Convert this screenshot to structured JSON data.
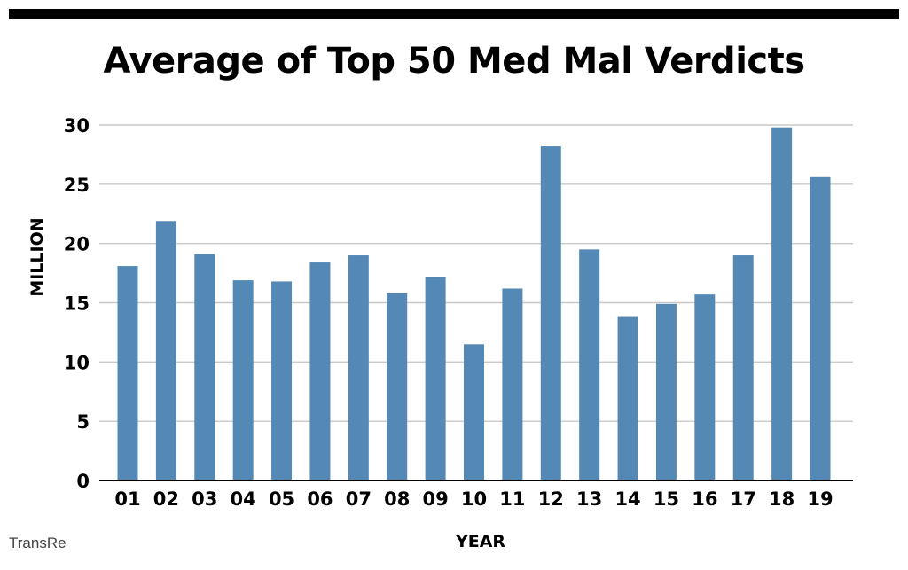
{
  "source": "TransRe",
  "colors": {
    "bar": "#5589b5",
    "grid": "#c8c8c8",
    "axis": "#000000",
    "text": "#000000"
  },
  "chart_data": {
    "type": "bar",
    "title": "Average of Top 50 Med Mal Verdicts",
    "xlabel": "YEAR",
    "ylabel": "MILLION",
    "ylim": [
      0,
      30
    ],
    "yticks": [
      0,
      5,
      10,
      15,
      20,
      25,
      30
    ],
    "grid": true,
    "categories": [
      "01",
      "02",
      "03",
      "04",
      "05",
      "06",
      "07",
      "08",
      "09",
      "10",
      "11",
      "12",
      "13",
      "14",
      "15",
      "16",
      "17",
      "18",
      "19"
    ],
    "values": [
      18.1,
      21.9,
      19.1,
      16.9,
      16.8,
      18.4,
      19.0,
      15.8,
      17.2,
      11.5,
      16.2,
      28.2,
      19.5,
      13.8,
      14.9,
      15.7,
      19.0,
      29.8,
      25.6
    ]
  }
}
